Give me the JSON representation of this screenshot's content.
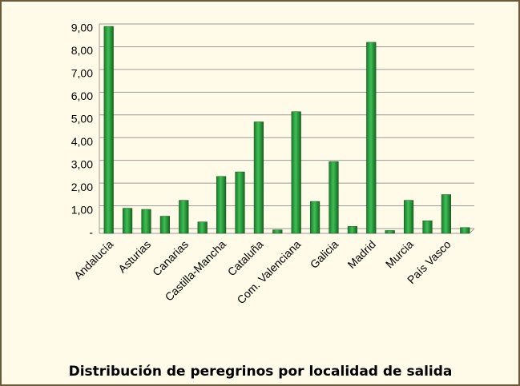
{
  "chart_data": {
    "type": "bar",
    "title": "Distribución de peregrinos por localidad de salida",
    "categories": [
      "Andalucía",
      null,
      "Asturias",
      null,
      "Canarias",
      null,
      "Castilla-Mancha",
      null,
      "Cataluña",
      null,
      "Com. Valenciana",
      null,
      "Galicia",
      null,
      "Madrid",
      null,
      "Murcia",
      null,
      "País Vasco",
      null
    ],
    "values": [
      9.0,
      1.0,
      0.95,
      0.65,
      1.35,
      0.4,
      2.4,
      2.6,
      4.8,
      0.05,
      5.25,
      1.3,
      3.05,
      0.2,
      8.3,
      0.02,
      1.35,
      0.45,
      1.6,
      0.15
    ],
    "color": "#2ea043",
    "ylim": [
      0,
      9
    ],
    "yticks": [
      {
        "value": 0,
        "label": "-"
      },
      {
        "value": 1,
        "label": "1,00"
      },
      {
        "value": 2,
        "label": "2,00"
      },
      {
        "value": 3,
        "label": "3,00"
      },
      {
        "value": 4,
        "label": "4,00"
      },
      {
        "value": 5,
        "label": "5,00"
      },
      {
        "value": 6,
        "label": "6,00"
      },
      {
        "value": 7,
        "label": "7,00"
      },
      {
        "value": 8,
        "label": "8,00"
      },
      {
        "value": 9,
        "label": "9,00"
      }
    ],
    "grid": true
  }
}
